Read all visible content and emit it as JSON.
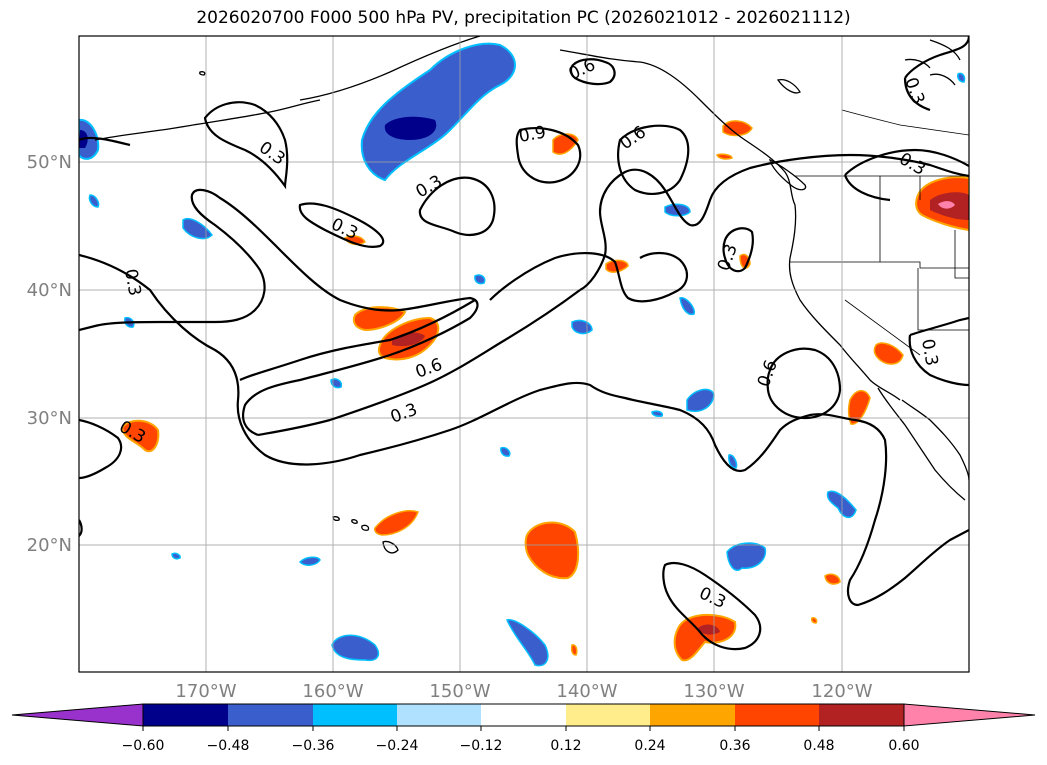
{
  "title": "2026020700 F000 500 hPa PV, precipitation PC (2026021012 - 2026021112)",
  "lon_labels": [
    "170°W",
    "160°W",
    "150°W",
    "140°W",
    "130°W",
    "120°W"
  ],
  "lat_labels": [
    "50°N",
    "40°N",
    "30°N",
    "20°N"
  ],
  "contour_labels": [
    {
      "text": "0.3",
      "pos": "n. pacific west"
    },
    {
      "text": "0.3",
      "pos": "aleutian low"
    },
    {
      "text": "0.9",
      "pos": "gulf of alaska"
    },
    {
      "text": "0.3",
      "pos": "gulf of alaska center"
    },
    {
      "text": "0.6",
      "pos": "bc coast"
    },
    {
      "text": "0.6",
      "pos": "alaska panhandle"
    },
    {
      "text": "0.3",
      "pos": "montana"
    },
    {
      "text": "0.3",
      "pos": "alaska"
    },
    {
      "text": "0.3",
      "pos": "far west"
    },
    {
      "text": "0.3",
      "pos": "oregon offshore"
    },
    {
      "text": "0.6",
      "pos": "trough axis"
    },
    {
      "text": "0.3",
      "pos": "trough south"
    },
    {
      "text": "0.6",
      "pos": "california offshore"
    },
    {
      "text": "0.3",
      "pos": "arizona"
    },
    {
      "text": "0.3",
      "pos": "hawaii west"
    },
    {
      "text": "0.3",
      "pos": "tropics"
    }
  ],
  "colorbar": {
    "ticks": [
      "−0.60",
      "−0.48",
      "−0.36",
      "−0.24",
      "−0.12",
      "0.12",
      "0.24",
      "0.36",
      "0.48",
      "0.60"
    ],
    "colors": [
      "#9932cc",
      "#00008b",
      "#3a5fcd",
      "#00bfff",
      "#b0e2ff",
      "#ffffff",
      "#ffec8b",
      "#ffa500",
      "#ff4500",
      "#b22222",
      "#ff82ab"
    ]
  }
}
